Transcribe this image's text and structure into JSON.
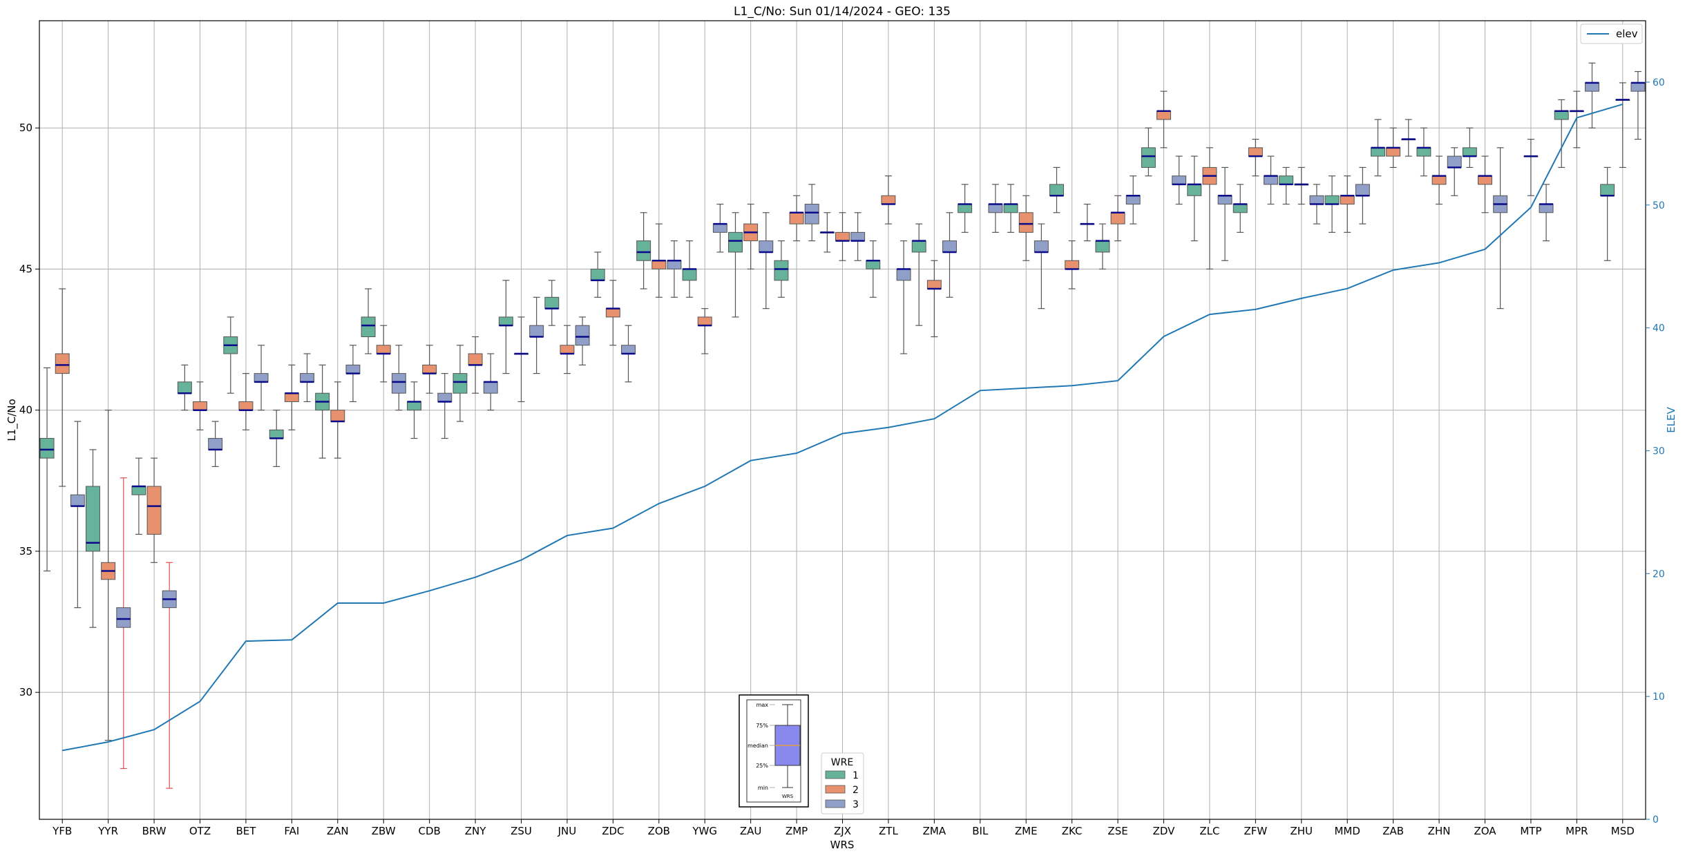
{
  "chart_data": {
    "type": "box",
    "title": "L1_C/No: Sun 01/14/2024 - GEO: 135",
    "xlabel": "WRS",
    "ylabel": "L1_C/No",
    "y2label": "ELEV",
    "ylim": [
      25.5,
      53.8
    ],
    "y2lim": [
      0,
      65
    ],
    "yticks": [
      30,
      35,
      40,
      45,
      50
    ],
    "y2ticks": [
      0,
      10,
      20,
      30,
      40,
      50,
      60
    ],
    "grid": true,
    "categories": [
      "YFB",
      "YYR",
      "BRW",
      "OTZ",
      "BET",
      "FAI",
      "ZAN",
      "ZBW",
      "CDB",
      "ZNY",
      "ZSU",
      "JNU",
      "ZDC",
      "ZOB",
      "YWG",
      "ZAU",
      "ZMP",
      "ZJX",
      "ZTL",
      "ZMA",
      "BIL",
      "ZME",
      "ZKC",
      "ZSE",
      "ZDV",
      "ZLC",
      "ZFW",
      "ZHU",
      "MMD",
      "ZAB",
      "ZHN",
      "ZOA",
      "MTP",
      "MPR",
      "MSD"
    ],
    "legend_title": "WRE",
    "series": [
      {
        "name": "1",
        "color": "#66b29a"
      },
      {
        "name": "2",
        "color": "#e8916e"
      },
      {
        "name": "3",
        "color": "#8f9fc8"
      }
    ],
    "boxes": [
      {
        "cat": "YFB",
        "wre": "1",
        "min": 34.3,
        "q1": 38.3,
        "median": 38.6,
        "q3": 39.0,
        "max": 41.5
      },
      {
        "cat": "YFB",
        "wre": "2",
        "min": 37.3,
        "q1": 41.3,
        "median": 41.6,
        "q3": 42.0,
        "max": 44.3
      },
      {
        "cat": "YFB",
        "wre": "3",
        "min": 33.0,
        "q1": 36.6,
        "median": 36.6,
        "q3": 37.0,
        "max": 39.6
      },
      {
        "cat": "YYR",
        "wre": "1",
        "min": 32.3,
        "q1": 35.0,
        "median": 35.3,
        "q3": 37.3,
        "max": 38.6
      },
      {
        "cat": "YYR",
        "wre": "2",
        "min": 28.3,
        "q1": 34.0,
        "median": 34.3,
        "q3": 34.6,
        "max": 40.0
      },
      {
        "cat": "YYR",
        "wre": "3",
        "min": 27.3,
        "q1": 32.3,
        "median": 32.6,
        "q3": 33.0,
        "max": 37.6,
        "whisker_color": "#e05050"
      },
      {
        "cat": "BRW",
        "wre": "1",
        "min": 35.6,
        "q1": 37.0,
        "median": 37.3,
        "q3": 37.3,
        "max": 38.3
      },
      {
        "cat": "BRW",
        "wre": "2",
        "min": 34.6,
        "q1": 35.6,
        "median": 36.6,
        "q3": 37.3,
        "max": 38.3
      },
      {
        "cat": "BRW",
        "wre": "3",
        "min": 26.6,
        "q1": 33.0,
        "median": 33.3,
        "q3": 33.6,
        "max": 34.6,
        "whisker_color": "#e05050"
      },
      {
        "cat": "OTZ",
        "wre": "1",
        "min": 40.0,
        "q1": 40.6,
        "median": 40.6,
        "q3": 41.0,
        "max": 41.6
      },
      {
        "cat": "OTZ",
        "wre": "2",
        "min": 39.3,
        "q1": 40.0,
        "median": 40.0,
        "q3": 40.3,
        "max": 41.0
      },
      {
        "cat": "OTZ",
        "wre": "3",
        "min": 38.0,
        "q1": 38.6,
        "median": 38.6,
        "q3": 39.0,
        "max": 39.6
      },
      {
        "cat": "BET",
        "wre": "1",
        "min": 40.6,
        "q1": 42.0,
        "median": 42.3,
        "q3": 42.6,
        "max": 43.3
      },
      {
        "cat": "BET",
        "wre": "2",
        "min": 39.3,
        "q1": 40.0,
        "median": 40.0,
        "q3": 40.3,
        "max": 41.3
      },
      {
        "cat": "BET",
        "wre": "3",
        "min": 40.0,
        "q1": 41.0,
        "median": 41.0,
        "q3": 41.3,
        "max": 42.3
      },
      {
        "cat": "FAI",
        "wre": "1",
        "min": 38.0,
        "q1": 39.0,
        "median": 39.0,
        "q3": 39.3,
        "max": 40.0
      },
      {
        "cat": "FAI",
        "wre": "2",
        "min": 39.3,
        "q1": 40.3,
        "median": 40.6,
        "q3": 40.6,
        "max": 41.6
      },
      {
        "cat": "FAI",
        "wre": "3",
        "min": 40.3,
        "q1": 41.0,
        "median": 41.0,
        "q3": 41.3,
        "max": 42.0
      },
      {
        "cat": "ZAN",
        "wre": "1",
        "min": 38.3,
        "q1": 40.0,
        "median": 40.3,
        "q3": 40.6,
        "max": 41.6
      },
      {
        "cat": "ZAN",
        "wre": "2",
        "min": 38.3,
        "q1": 39.6,
        "median": 39.6,
        "q3": 40.0,
        "max": 41.0
      },
      {
        "cat": "ZAN",
        "wre": "3",
        "min": 40.3,
        "q1": 41.3,
        "median": 41.3,
        "q3": 41.6,
        "max": 42.3
      },
      {
        "cat": "ZBW",
        "wre": "1",
        "min": 42.0,
        "q1": 42.6,
        "median": 43.0,
        "q3": 43.3,
        "max": 44.3
      },
      {
        "cat": "ZBW",
        "wre": "2",
        "min": 41.0,
        "q1": 42.0,
        "median": 42.0,
        "q3": 42.3,
        "max": 43.0
      },
      {
        "cat": "ZBW",
        "wre": "3",
        "min": 40.0,
        "q1": 40.6,
        "median": 41.0,
        "q3": 41.3,
        "max": 42.3
      },
      {
        "cat": "CDB",
        "wre": "1",
        "min": 39.0,
        "q1": 40.0,
        "median": 40.3,
        "q3": 40.3,
        "max": 41.0
      },
      {
        "cat": "CDB",
        "wre": "2",
        "min": 40.6,
        "q1": 41.3,
        "median": 41.3,
        "q3": 41.6,
        "max": 42.3
      },
      {
        "cat": "CDB",
        "wre": "3",
        "min": 39.0,
        "q1": 40.3,
        "median": 40.3,
        "q3": 40.6,
        "max": 41.3
      },
      {
        "cat": "ZNY",
        "wre": "1",
        "min": 39.6,
        "q1": 40.6,
        "median": 41.0,
        "q3": 41.3,
        "max": 42.3
      },
      {
        "cat": "ZNY",
        "wre": "2",
        "min": 40.6,
        "q1": 41.6,
        "median": 41.6,
        "q3": 42.0,
        "max": 42.6
      },
      {
        "cat": "ZNY",
        "wre": "3",
        "min": 40.0,
        "q1": 40.6,
        "median": 41.0,
        "q3": 41.0,
        "max": 42.0
      },
      {
        "cat": "ZSU",
        "wre": "1",
        "min": 41.3,
        "q1": 43.0,
        "median": 43.0,
        "q3": 43.3,
        "max": 44.6
      },
      {
        "cat": "ZSU",
        "wre": "2",
        "min": 40.3,
        "q1": 42.0,
        "median": 42.0,
        "q3": 42.0,
        "max": 43.3
      },
      {
        "cat": "ZSU",
        "wre": "3",
        "min": 41.3,
        "q1": 42.6,
        "median": 42.6,
        "q3": 43.0,
        "max": 44.0
      },
      {
        "cat": "JNU",
        "wre": "1",
        "min": 43.0,
        "q1": 43.6,
        "median": 43.6,
        "q3": 44.0,
        "max": 44.6
      },
      {
        "cat": "JNU",
        "wre": "2",
        "min": 41.3,
        "q1": 42.0,
        "median": 42.0,
        "q3": 42.3,
        "max": 43.0
      },
      {
        "cat": "JNU",
        "wre": "3",
        "min": 41.6,
        "q1": 42.3,
        "median": 42.6,
        "q3": 43.0,
        "max": 43.3
      },
      {
        "cat": "ZDC",
        "wre": "1",
        "min": 44.0,
        "q1": 44.6,
        "median": 44.6,
        "q3": 45.0,
        "max": 45.6
      },
      {
        "cat": "ZDC",
        "wre": "2",
        "min": 42.3,
        "q1": 43.3,
        "median": 43.6,
        "q3": 43.6,
        "max": 44.6
      },
      {
        "cat": "ZDC",
        "wre": "3",
        "min": 41.0,
        "q1": 42.0,
        "median": 42.0,
        "q3": 42.3,
        "max": 43.0
      },
      {
        "cat": "ZOB",
        "wre": "1",
        "min": 44.3,
        "q1": 45.3,
        "median": 45.6,
        "q3": 46.0,
        "max": 47.0
      },
      {
        "cat": "ZOB",
        "wre": "2",
        "min": 44.0,
        "q1": 45.0,
        "median": 45.3,
        "q3": 45.3,
        "max": 46.6
      },
      {
        "cat": "ZOB",
        "wre": "3",
        "min": 44.0,
        "q1": 45.0,
        "median": 45.3,
        "q3": 45.3,
        "max": 46.0
      },
      {
        "cat": "YWG",
        "wre": "1",
        "min": 44.0,
        "q1": 44.6,
        "median": 45.0,
        "q3": 45.0,
        "max": 46.0
      },
      {
        "cat": "YWG",
        "wre": "2",
        "min": 42.0,
        "q1": 43.0,
        "median": 43.0,
        "q3": 43.3,
        "max": 43.6
      },
      {
        "cat": "YWG",
        "wre": "3",
        "min": 45.6,
        "q1": 46.3,
        "median": 46.6,
        "q3": 46.6,
        "max": 47.3
      },
      {
        "cat": "ZAU",
        "wre": "1",
        "min": 43.3,
        "q1": 45.6,
        "median": 46.0,
        "q3": 46.3,
        "max": 47.0
      },
      {
        "cat": "ZAU",
        "wre": "2",
        "min": 45.0,
        "q1": 46.0,
        "median": 46.3,
        "q3": 46.6,
        "max": 47.3
      },
      {
        "cat": "ZAU",
        "wre": "3",
        "min": 43.6,
        "q1": 45.6,
        "median": 45.6,
        "q3": 46.0,
        "max": 47.0
      },
      {
        "cat": "ZMP",
        "wre": "1",
        "min": 44.0,
        "q1": 44.6,
        "median": 45.0,
        "q3": 45.3,
        "max": 46.0
      },
      {
        "cat": "ZMP",
        "wre": "2",
        "min": 46.0,
        "q1": 46.6,
        "median": 47.0,
        "q3": 47.0,
        "max": 47.6
      },
      {
        "cat": "ZMP",
        "wre": "3",
        "min": 46.0,
        "q1": 46.6,
        "median": 47.0,
        "q3": 47.3,
        "max": 48.0
      },
      {
        "cat": "ZJX",
        "wre": "1",
        "min": 45.6,
        "q1": 46.3,
        "median": 46.3,
        "q3": 46.3,
        "max": 47.0
      },
      {
        "cat": "ZJX",
        "wre": "2",
        "min": 45.3,
        "q1": 46.0,
        "median": 46.0,
        "q3": 46.3,
        "max": 47.0
      },
      {
        "cat": "ZJX",
        "wre": "3",
        "min": 45.3,
        "q1": 46.0,
        "median": 46.0,
        "q3": 46.3,
        "max": 47.0
      },
      {
        "cat": "ZTL",
        "wre": "1",
        "min": 44.0,
        "q1": 45.0,
        "median": 45.3,
        "q3": 45.3,
        "max": 46.0
      },
      {
        "cat": "ZTL",
        "wre": "2",
        "min": 46.6,
        "q1": 47.3,
        "median": 47.3,
        "q3": 47.6,
        "max": 48.3
      },
      {
        "cat": "ZTL",
        "wre": "3",
        "min": 42.0,
        "q1": 44.6,
        "median": 45.0,
        "q3": 45.0,
        "max": 46.0
      },
      {
        "cat": "ZMA",
        "wre": "1",
        "min": 43.0,
        "q1": 45.6,
        "median": 46.0,
        "q3": 46.0,
        "max": 46.6
      },
      {
        "cat": "ZMA",
        "wre": "2",
        "min": 42.6,
        "q1": 44.3,
        "median": 44.3,
        "q3": 44.6,
        "max": 45.3
      },
      {
        "cat": "ZMA",
        "wre": "3",
        "min": 44.0,
        "q1": 45.6,
        "median": 45.6,
        "q3": 46.0,
        "max": 47.0
      },
      {
        "cat": "BIL",
        "wre": "1",
        "min": 46.3,
        "q1": 47.0,
        "median": 47.3,
        "q3": 47.3,
        "max": 48.0
      },
      {
        "cat": "BIL",
        "wre": "3",
        "min": 46.3,
        "q1": 47.0,
        "median": 47.3,
        "q3": 47.3,
        "max": 48.0
      },
      {
        "cat": "ZME",
        "wre": "1",
        "min": 46.3,
        "q1": 47.0,
        "median": 47.3,
        "q3": 47.3,
        "max": 48.0
      },
      {
        "cat": "ZME",
        "wre": "2",
        "min": 45.3,
        "q1": 46.3,
        "median": 46.6,
        "q3": 47.0,
        "max": 47.6
      },
      {
        "cat": "ZME",
        "wre": "3",
        "min": 43.6,
        "q1": 45.6,
        "median": 45.6,
        "q3": 46.0,
        "max": 46.6
      },
      {
        "cat": "ZKC",
        "wre": "1",
        "min": 47.0,
        "q1": 47.6,
        "median": 47.6,
        "q3": 48.0,
        "max": 48.6
      },
      {
        "cat": "ZKC",
        "wre": "2",
        "min": 44.3,
        "q1": 45.0,
        "median": 45.0,
        "q3": 45.3,
        "max": 46.0
      },
      {
        "cat": "ZKC",
        "wre": "3",
        "min": 46.0,
        "q1": 46.6,
        "median": 46.6,
        "q3": 46.6,
        "max": 47.3
      },
      {
        "cat": "ZSE",
        "wre": "1",
        "min": 45.0,
        "q1": 45.6,
        "median": 46.0,
        "q3": 46.0,
        "max": 46.6
      },
      {
        "cat": "ZSE",
        "wre": "2",
        "min": 46.0,
        "q1": 46.6,
        "median": 47.0,
        "q3": 47.0,
        "max": 47.6
      },
      {
        "cat": "ZSE",
        "wre": "3",
        "min": 46.6,
        "q1": 47.3,
        "median": 47.6,
        "q3": 47.6,
        "max": 48.3
      },
      {
        "cat": "ZDV",
        "wre": "1",
        "min": 48.3,
        "q1": 48.6,
        "median": 49.0,
        "q3": 49.3,
        "max": 50.0
      },
      {
        "cat": "ZDV",
        "wre": "2",
        "min": 49.3,
        "q1": 50.3,
        "median": 50.6,
        "q3": 50.6,
        "max": 51.3
      },
      {
        "cat": "ZDV",
        "wre": "3",
        "min": 47.3,
        "q1": 48.0,
        "median": 48.0,
        "q3": 48.3,
        "max": 49.0
      },
      {
        "cat": "ZLC",
        "wre": "1",
        "min": 46.0,
        "q1": 47.6,
        "median": 48.0,
        "q3": 48.0,
        "max": 49.0
      },
      {
        "cat": "ZLC",
        "wre": "2",
        "min": 45.0,
        "q1": 48.0,
        "median": 48.3,
        "q3": 48.6,
        "max": 49.3
      },
      {
        "cat": "ZLC",
        "wre": "3",
        "min": 45.3,
        "q1": 47.3,
        "median": 47.6,
        "q3": 47.6,
        "max": 48.6
      },
      {
        "cat": "ZFW",
        "wre": "1",
        "min": 46.3,
        "q1": 47.0,
        "median": 47.3,
        "q3": 47.3,
        "max": 48.0
      },
      {
        "cat": "ZFW",
        "wre": "2",
        "min": 48.3,
        "q1": 49.0,
        "median": 49.0,
        "q3": 49.3,
        "max": 49.6
      },
      {
        "cat": "ZFW",
        "wre": "3",
        "min": 47.3,
        "q1": 48.0,
        "median": 48.3,
        "q3": 48.3,
        "max": 49.0
      },
      {
        "cat": "ZHU",
        "wre": "1",
        "min": 47.3,
        "q1": 48.0,
        "median": 48.0,
        "q3": 48.3,
        "max": 48.6
      },
      {
        "cat": "ZHU",
        "wre": "2",
        "min": 47.3,
        "q1": 48.0,
        "median": 48.0,
        "q3": 48.0,
        "max": 48.6
      },
      {
        "cat": "ZHU",
        "wre": "3",
        "min": 46.6,
        "q1": 47.3,
        "median": 47.3,
        "q3": 47.6,
        "max": 48.0
      },
      {
        "cat": "MMD",
        "wre": "1",
        "min": 46.3,
        "q1": 47.3,
        "median": 47.3,
        "q3": 47.6,
        "max": 48.3
      },
      {
        "cat": "MMD",
        "wre": "2",
        "min": 46.3,
        "q1": 47.3,
        "median": 47.6,
        "q3": 47.6,
        "max": 48.3
      },
      {
        "cat": "MMD",
        "wre": "3",
        "min": 46.6,
        "q1": 47.6,
        "median": 47.6,
        "q3": 48.0,
        "max": 48.6
      },
      {
        "cat": "ZAB",
        "wre": "1",
        "min": 48.3,
        "q1": 49.0,
        "median": 49.3,
        "q3": 49.3,
        "max": 50.3
      },
      {
        "cat": "ZAB",
        "wre": "2",
        "min": 48.6,
        "q1": 49.0,
        "median": 49.3,
        "q3": 49.3,
        "max": 50.0
      },
      {
        "cat": "ZAB",
        "wre": "3",
        "min": 49.0,
        "q1": 49.6,
        "median": 49.6,
        "q3": 49.6,
        "max": 50.3
      },
      {
        "cat": "ZHN",
        "wre": "1",
        "min": 48.3,
        "q1": 49.0,
        "median": 49.3,
        "q3": 49.3,
        "max": 50.0
      },
      {
        "cat": "ZHN",
        "wre": "2",
        "min": 47.3,
        "q1": 48.0,
        "median": 48.3,
        "q3": 48.3,
        "max": 49.0
      },
      {
        "cat": "ZHN",
        "wre": "3",
        "min": 47.6,
        "q1": 48.6,
        "median": 48.6,
        "q3": 49.0,
        "max": 49.3
      },
      {
        "cat": "ZOA",
        "wre": "1",
        "min": 48.6,
        "q1": 49.0,
        "median": 49.0,
        "q3": 49.3,
        "max": 50.0
      },
      {
        "cat": "ZOA",
        "wre": "2",
        "min": 47.0,
        "q1": 48.0,
        "median": 48.3,
        "q3": 48.3,
        "max": 49.0
      },
      {
        "cat": "ZOA",
        "wre": "3",
        "min": 43.6,
        "q1": 47.0,
        "median": 47.3,
        "q3": 47.6,
        "max": 49.3
      },
      {
        "cat": "MTP",
        "wre": "2",
        "min": 47.6,
        "q1": 49.0,
        "median": 49.0,
        "q3": 49.0,
        "max": 49.6
      },
      {
        "cat": "MTP",
        "wre": "3",
        "min": 46.0,
        "q1": 47.0,
        "median": 47.3,
        "q3": 47.3,
        "max": 48.0
      },
      {
        "cat": "MPR",
        "wre": "1",
        "min": 48.6,
        "q1": 50.3,
        "median": 50.6,
        "q3": 50.6,
        "max": 51.0
      },
      {
        "cat": "MPR",
        "wre": "2",
        "min": 49.3,
        "q1": 50.6,
        "median": 50.6,
        "q3": 50.6,
        "max": 51.3
      },
      {
        "cat": "MPR",
        "wre": "3",
        "min": 50.0,
        "q1": 51.3,
        "median": 51.6,
        "q3": 51.6,
        "max": 52.3
      },
      {
        "cat": "MSD",
        "wre": "1",
        "min": 45.3,
        "q1": 47.6,
        "median": 47.6,
        "q3": 48.0,
        "max": 48.6
      },
      {
        "cat": "MSD",
        "wre": "2",
        "min": 48.6,
        "q1": 51.0,
        "median": 51.0,
        "q3": 51.0,
        "max": 51.6
      },
      {
        "cat": "MSD",
        "wre": "3",
        "min": 49.6,
        "q1": 51.3,
        "median": 51.6,
        "q3": 51.6,
        "max": 52.0
      }
    ],
    "elev_series": {
      "name": "elev",
      "color": "#1f77b4",
      "values": [
        5.6,
        6.3,
        7.3,
        9.6,
        14.5,
        14.6,
        17.6,
        17.6,
        18.6,
        19.7,
        21.1,
        23.1,
        23.7,
        25.7,
        27.1,
        29.2,
        29.8,
        31.4,
        31.9,
        32.6,
        34.9,
        35.1,
        35.3,
        35.7,
        39.3,
        41.1,
        41.5,
        42.4,
        43.2,
        44.7,
        45.3,
        46.4,
        49.8,
        57.1,
        58.2
      ]
    },
    "legend_box": {
      "labels": [
        "max",
        "75%",
        "median",
        "25%",
        "min"
      ],
      "xlabel": "WRS",
      "fill": "#8888ee",
      "median_color": "#e0a040"
    }
  }
}
